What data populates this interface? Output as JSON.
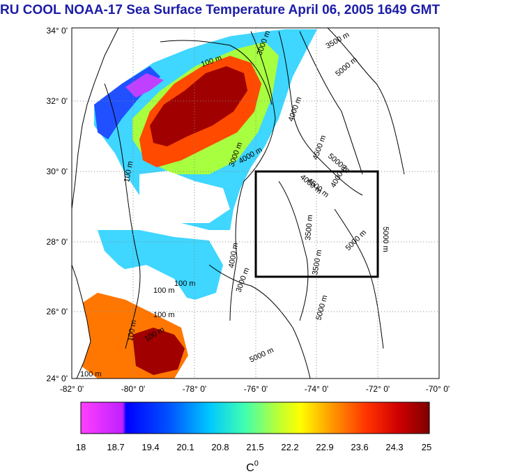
{
  "title": "RU COOL  NOAA-17 Sea Surface Temperature April 06, 2005 1649 GMT",
  "map": {
    "lat_labels": [
      "34° 0'",
      "32° 0'",
      "30° 0'",
      "28° 0'",
      "26° 0'",
      "24° 0'"
    ],
    "lon_labels": [
      "-82° 0'",
      "-80° 0'",
      "-78° 0'",
      "-76° 0'",
      "-74° 0'",
      "-72° 0'",
      "-70° 0'"
    ],
    "lat_range": [
      24,
      34
    ],
    "lon_range": [
      -82,
      -70
    ],
    "study_box": {
      "lon": [
        -76,
        -72
      ],
      "lat": [
        27,
        30
      ]
    },
    "contour_labels": [
      "100 m",
      "100 m",
      "100 m",
      "100 m",
      "100 m",
      "100 m",
      "100 m",
      "100 m",
      "3000 m",
      "3000 m",
      "3000 m",
      "3500 m",
      "3500 m",
      "3500 m",
      "4000 m",
      "4000 m",
      "4000 m",
      "4000 m",
      "4000 m",
      "4500 m",
      "4500 m",
      "5000 m",
      "5000 m",
      "5000 m",
      "5000 m",
      "5000 m",
      "5000 m"
    ]
  },
  "colorbar": {
    "ticks": [
      "18",
      "18.7",
      "19.4",
      "20.1",
      "20.8",
      "21.5",
      "22.2",
      "22.9",
      "23.6",
      "24.3",
      "25"
    ],
    "unit": "C",
    "unit_sup": "0",
    "colors": [
      "#ff00ff",
      "#0000ff",
      "#00b4ff",
      "#00ffff",
      "#7fff40",
      "#ffff00",
      "#ff9900",
      "#ff3300",
      "#d00000",
      "#7a0000"
    ]
  }
}
